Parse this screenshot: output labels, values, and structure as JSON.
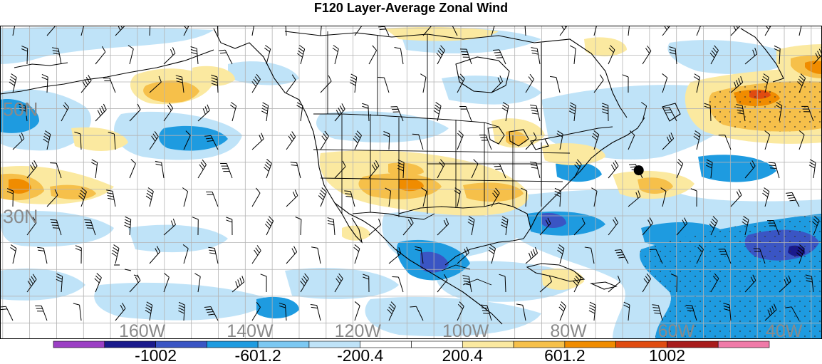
{
  "title": "F120 Layer-Average Zonal Wind",
  "map": {
    "lat_labels": [
      {
        "text": "50N",
        "lat": 50
      },
      {
        "text": "30N",
        "lat": 30
      }
    ],
    "lon_labels": [
      {
        "text": "160W",
        "lon": -160
      },
      {
        "text": "140W",
        "lon": -140
      },
      {
        "text": "120W",
        "lon": -120
      },
      {
        "text": "100W",
        "lon": -100
      },
      {
        "text": "80W",
        "lon": -80
      },
      {
        "text": "60W",
        "lon": -60
      },
      {
        "text": "40W",
        "lon": -40
      }
    ],
    "marker": {
      "lat": 38.5,
      "lon": -67
    }
  },
  "colorbar": {
    "colors": [
      "#9b3fc4",
      "#1a1a8c",
      "#3a55c4",
      "#1e9be0",
      "#7cc8f2",
      "#bfe3f8",
      "#ffffff",
      "#ffffff",
      "#fbe9a0",
      "#f6c04a",
      "#f08c00",
      "#e04b10",
      "#a81c1c",
      "#f07aa8"
    ],
    "labels": [
      {
        "text": "-1002",
        "boundary": 2
      },
      {
        "text": "-601.2",
        "boundary": 4
      },
      {
        "text": "-200.4",
        "boundary": 6
      },
      {
        "text": "200.4",
        "boundary": 8
      },
      {
        "text": "601.2",
        "boundary": 10
      },
      {
        "text": "1002",
        "boundary": 12
      }
    ]
  }
}
